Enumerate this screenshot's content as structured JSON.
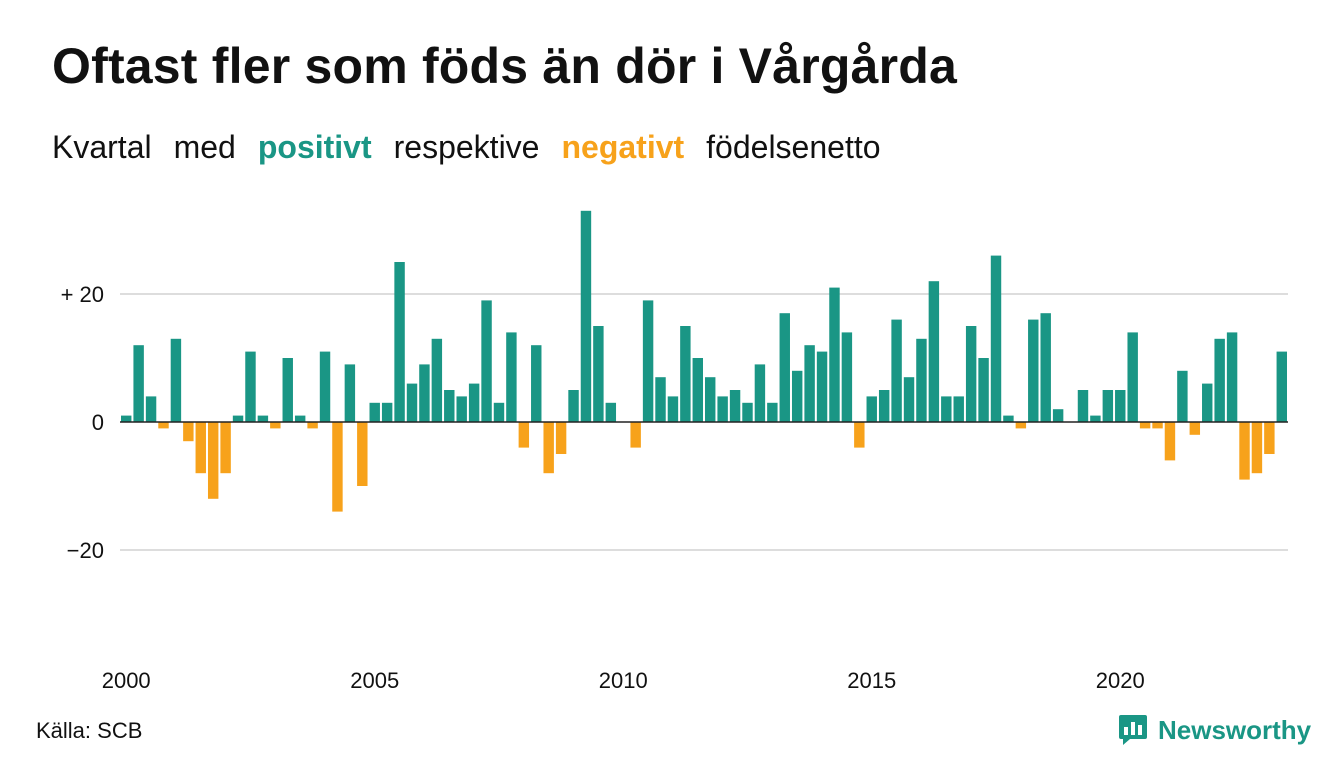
{
  "title": "Oftast fler som föds än dör i Vårgårda",
  "subtitle": {
    "part1": "Kvartal",
    "part2": "med",
    "positive_word": "positivt",
    "part3": "respektive",
    "negative_word": "negativt",
    "part4": "födelsenetto"
  },
  "colors": {
    "positive": "#1a9685",
    "negative": "#f7a21b",
    "gridline": "#dddddd",
    "zero_line": "#222222",
    "brand": "#1a9685"
  },
  "source": "Källa: SCB",
  "brand": {
    "name": "Newsworthy",
    "icon": "newsworthy-logo-icon"
  },
  "chart_data": {
    "type": "bar",
    "x_unit": "quarter",
    "x_start": "2000 Q1",
    "x_ticks": [
      "2000",
      "2005",
      "2010",
      "2015",
      "2020"
    ],
    "y_ticks": [
      "+ 20",
      "0",
      "−20"
    ],
    "y_tick_values": [
      20,
      0,
      -20
    ],
    "ylim": [
      -33,
      33
    ],
    "grid": true,
    "values": [
      1,
      12,
      4,
      -1,
      13,
      -3,
      -8,
      -12,
      -8,
      1,
      11,
      1,
      -1,
      10,
      1,
      -1,
      11,
      -14,
      9,
      -10,
      3,
      3,
      25,
      6,
      9,
      13,
      5,
      4,
      6,
      19,
      3,
      14,
      -4,
      12,
      -8,
      -5,
      5,
      33,
      15,
      3,
      0,
      -4,
      19,
      7,
      4,
      15,
      10,
      7,
      4,
      5,
      3,
      9,
      3,
      17,
      8,
      12,
      11,
      21,
      14,
      -4,
      4,
      5,
      16,
      7,
      13,
      22,
      4,
      4,
      15,
      10,
      26,
      1,
      -1,
      16,
      17,
      2,
      0,
      5,
      1,
      5,
      5,
      14,
      -1,
      -1,
      -6,
      8,
      -2,
      6,
      13,
      14,
      -9,
      -8,
      -5,
      11
    ]
  }
}
